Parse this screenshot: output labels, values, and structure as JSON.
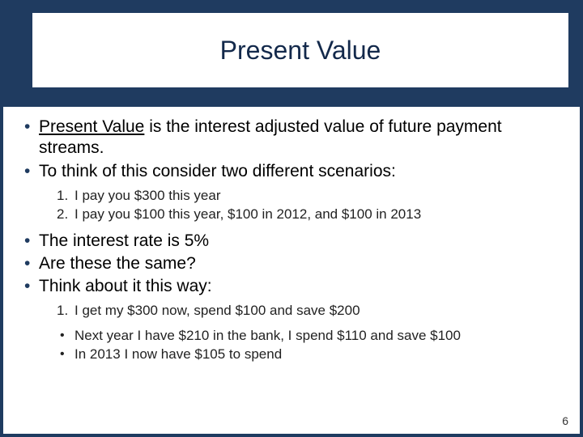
{
  "title": "Present Value",
  "bullets": {
    "b1_prefix": "Present Value",
    "b1_rest": " is the interest adjusted value of future payment streams.",
    "b2": "To think of this consider two different scenarios:",
    "b3": "The interest rate is 5%",
    "b4": "Are these the same?",
    "b5": "Think about it this way:"
  },
  "scenarios": {
    "s1_num": "1.",
    "s1": "I pay you $300 this year",
    "s2_num": "2.",
    "s2": "I pay you $100 this year, $100 in 2012, and $100 in 2013"
  },
  "reasoning": {
    "r1_num": "1.",
    "r1": "I get my $300 now, spend $100 and save $200",
    "r2": "Next year I have $210 in the bank, I spend $110 and save $100",
    "r3": "In 2013 I now have $105 to spend"
  },
  "page_number": "6",
  "colors": {
    "frame": "#1f3b60",
    "title_text": "#13294b",
    "body_text": "#000000",
    "background": "#ffffff"
  },
  "typography": {
    "title_fontsize": 32,
    "bullet_fontsize": 21,
    "sub_fontsize": 17
  }
}
